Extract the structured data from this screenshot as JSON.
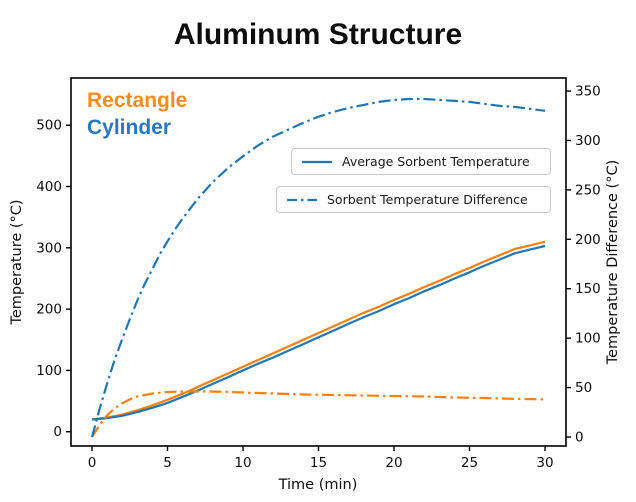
{
  "title": "Aluminum Structure",
  "annotations": {
    "rectangle_label": "Rectangle",
    "cylinder_label": "Cylinder"
  },
  "legend": {
    "avg_label": "Average Sorbent Temperature",
    "diff_label": "Sorbent Temperature Difference"
  },
  "colors": {
    "rectangle_line": "#ff7f0e",
    "cylinder_line": "#1f77b4",
    "rectangle_text": "#ff8c1a",
    "cylinder_text": "#2979c0",
    "axis": "#000000",
    "legend_border": "#c9c9c9"
  },
  "chart_data": {
    "type": "line",
    "title": "Aluminum Structure",
    "xlabel": "Time (min)",
    "ylabel_left": "Temperature (°C)",
    "ylabel_right": "Temperature Difference (°C)",
    "x_ticks": [
      0,
      5,
      10,
      15,
      20,
      25,
      30
    ],
    "y_ticks_left": [
      0,
      100,
      200,
      300,
      400,
      500
    ],
    "y_ticks_right": [
      0,
      50,
      100,
      150,
      200,
      250,
      300,
      350
    ],
    "xlim": [
      -1.39,
      31.39
    ],
    "ylim_left": [
      -23.3,
      577.0
    ],
    "ylim_right": [
      -9.1,
      363.2
    ],
    "grid": false,
    "legend_position": "upper center, two stacked boxes",
    "series": [
      {
        "name": "Rectangle Average Sorbent Temperature",
        "shape": "Rectangle",
        "axis": "left",
        "color": "#ff7f0e",
        "style": "solid",
        "points": [
          [
            0,
            20
          ],
          [
            1,
            23
          ],
          [
            2,
            28
          ],
          [
            3,
            35
          ],
          [
            4,
            43
          ],
          [
            5,
            52
          ],
          [
            6,
            62
          ],
          [
            7,
            73
          ],
          [
            8,
            84
          ],
          [
            9,
            95
          ],
          [
            10,
            106
          ],
          [
            11,
            117
          ],
          [
            12,
            128
          ],
          [
            13,
            139
          ],
          [
            14,
            150
          ],
          [
            15,
            161
          ],
          [
            16,
            172
          ],
          [
            17,
            183
          ],
          [
            18,
            194
          ],
          [
            19,
            204
          ],
          [
            20,
            215
          ],
          [
            21,
            225
          ],
          [
            22,
            236
          ],
          [
            23,
            246
          ],
          [
            24,
            257
          ],
          [
            25,
            267
          ],
          [
            26,
            278
          ],
          [
            27,
            288
          ],
          [
            28,
            298
          ],
          [
            29,
            304
          ],
          [
            30,
            310
          ]
        ]
      },
      {
        "name": "Cylinder Average Sorbent Temperature",
        "shape": "Cylinder",
        "axis": "left",
        "color": "#1f77b4",
        "style": "solid",
        "points": [
          [
            0,
            20
          ],
          [
            1,
            22
          ],
          [
            2,
            26
          ],
          [
            3,
            32
          ],
          [
            4,
            39
          ],
          [
            5,
            47
          ],
          [
            6,
            57
          ],
          [
            7,
            67
          ],
          [
            8,
            78
          ],
          [
            9,
            89
          ],
          [
            10,
            100
          ],
          [
            11,
            111
          ],
          [
            12,
            121
          ],
          [
            13,
            132
          ],
          [
            14,
            143
          ],
          [
            15,
            154
          ],
          [
            16,
            165
          ],
          [
            17,
            176
          ],
          [
            18,
            187
          ],
          [
            19,
            197
          ],
          [
            20,
            208
          ],
          [
            21,
            218
          ],
          [
            22,
            229
          ],
          [
            23,
            239
          ],
          [
            24,
            250
          ],
          [
            25,
            260
          ],
          [
            26,
            271
          ],
          [
            27,
            281
          ],
          [
            28,
            291
          ],
          [
            29,
            297
          ],
          [
            30,
            303
          ]
        ]
      },
      {
        "name": "Rectangle Sorbent Temperature Difference",
        "shape": "Rectangle",
        "axis": "right",
        "color": "#ff7f0e",
        "style": "dashdot",
        "points": [
          [
            0,
            0
          ],
          [
            0.25,
            6
          ],
          [
            0.5,
            12
          ],
          [
            1,
            22
          ],
          [
            1.5,
            29
          ],
          [
            2,
            34
          ],
          [
            2.5,
            38
          ],
          [
            3,
            41
          ],
          [
            4,
            44
          ],
          [
            5,
            45.5
          ],
          [
            6,
            46
          ],
          [
            7,
            46
          ],
          [
            8,
            46
          ],
          [
            9,
            45.5
          ],
          [
            10,
            45
          ],
          [
            12,
            44
          ],
          [
            14,
            43
          ],
          [
            16,
            42.5
          ],
          [
            18,
            42
          ],
          [
            20,
            41.5
          ],
          [
            22,
            41
          ],
          [
            24,
            40
          ],
          [
            26,
            39.5
          ],
          [
            28,
            38.5
          ],
          [
            30,
            38
          ]
        ]
      },
      {
        "name": "Cylinder Sorbent Temperature Difference",
        "shape": "Cylinder",
        "axis": "right",
        "color": "#1f77b4",
        "style": "dashdot",
        "points": [
          [
            0,
            0
          ],
          [
            0.5,
            28
          ],
          [
            1,
            54
          ],
          [
            1.5,
            78
          ],
          [
            2,
            99
          ],
          [
            2.5,
            119
          ],
          [
            3,
            138
          ],
          [
            3.5,
            155
          ],
          [
            4,
            170
          ],
          [
            4.5,
            185
          ],
          [
            5,
            198
          ],
          [
            5.5,
            210
          ],
          [
            6,
            221
          ],
          [
            7,
            241
          ],
          [
            8,
            258
          ],
          [
            9,
            272
          ],
          [
            10,
            284
          ],
          [
            11,
            295
          ],
          [
            12,
            304
          ],
          [
            13,
            311
          ],
          [
            14,
            318
          ],
          [
            15,
            324
          ],
          [
            16,
            329
          ],
          [
            17,
            333
          ],
          [
            18,
            336
          ],
          [
            19,
            339
          ],
          [
            20,
            341
          ],
          [
            21,
            342
          ],
          [
            22,
            342
          ],
          [
            23,
            341
          ],
          [
            24,
            340
          ],
          [
            25,
            339
          ],
          [
            26,
            337
          ],
          [
            27,
            335
          ],
          [
            28,
            334
          ],
          [
            29,
            332
          ],
          [
            30,
            330
          ]
        ]
      }
    ]
  }
}
